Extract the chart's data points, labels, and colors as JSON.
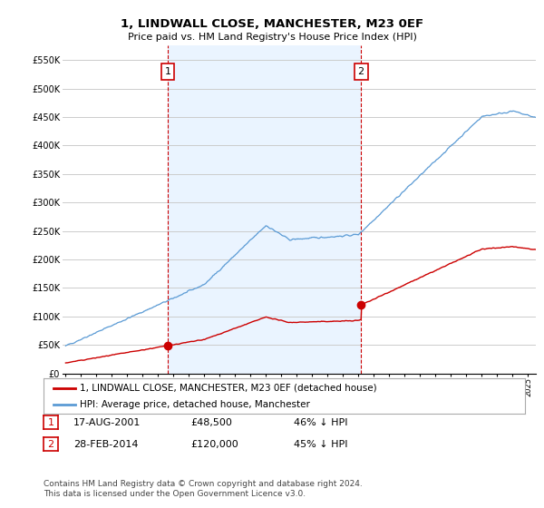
{
  "title": "1, LINDWALL CLOSE, MANCHESTER, M23 0EF",
  "subtitle": "Price paid vs. HM Land Registry's House Price Index (HPI)",
  "ylim": [
    0,
    575000
  ],
  "yticks": [
    0,
    50000,
    100000,
    150000,
    200000,
    250000,
    300000,
    350000,
    400000,
    450000,
    500000,
    550000
  ],
  "ytick_labels": [
    "£0",
    "£50K",
    "£100K",
    "£150K",
    "£200K",
    "£250K",
    "£300K",
    "£350K",
    "£400K",
    "£450K",
    "£500K",
    "£550K"
  ],
  "hpi_color": "#5b9bd5",
  "price_color": "#cc0000",
  "vline_color": "#cc0000",
  "shade_color": "#ddeeff",
  "point1_year": 2001.62,
  "point1_price": 48500,
  "point2_year": 2014.16,
  "point2_price": 120000,
  "legend_label1": "1, LINDWALL CLOSE, MANCHESTER, M23 0EF (detached house)",
  "legend_label2": "HPI: Average price, detached house, Manchester",
  "table_row1": [
    "1",
    "17-AUG-2001",
    "£48,500",
    "46% ↓ HPI"
  ],
  "table_row2": [
    "2",
    "28-FEB-2014",
    "£120,000",
    "45% ↓ HPI"
  ],
  "footnote": "Contains HM Land Registry data © Crown copyright and database right 2024.\nThis data is licensed under the Open Government Licence v3.0.",
  "bg_color": "#ffffff",
  "grid_color": "#cccccc"
}
